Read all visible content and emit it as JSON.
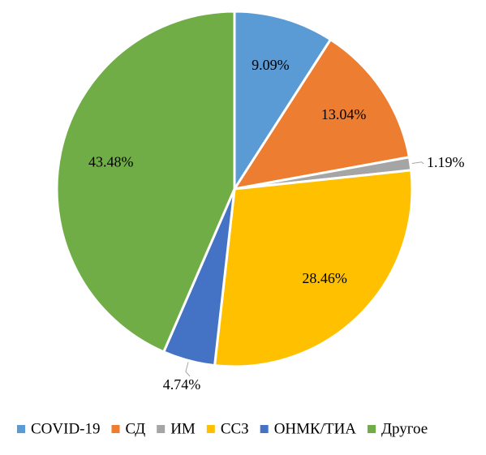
{
  "chart_data": {
    "type": "pie",
    "slices": [
      {
        "name": "COVID-19",
        "value": 9.09,
        "label": "9.09%",
        "color": "#5B9BD5"
      },
      {
        "name": "СД",
        "value": 13.04,
        "label": "13.04%",
        "color": "#ED7D31"
      },
      {
        "name": "ИМ",
        "value": 1.19,
        "label": "1.19%",
        "color": "#A5A5A5"
      },
      {
        "name": "ССЗ",
        "value": 28.46,
        "label": "28.46%",
        "color": "#FFC000"
      },
      {
        "name": "ОНМК/ТИА",
        "value": 4.74,
        "label": "4.74%",
        "color": "#4472C4"
      },
      {
        "name": "Другое",
        "value": 43.48,
        "label": "43.48%",
        "color": "#70AD47"
      }
    ],
    "legend_position": "bottom",
    "start_angle": "12 o'clock",
    "direction": "clockwise"
  }
}
